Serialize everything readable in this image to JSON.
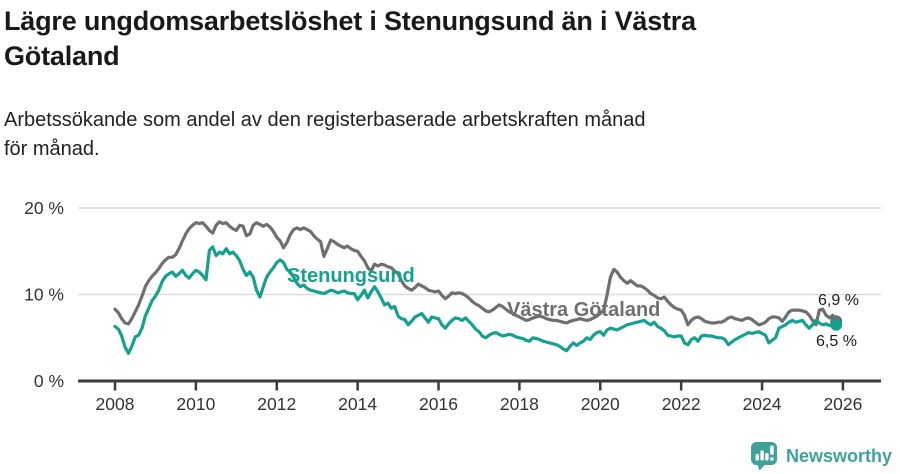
{
  "title": "Lägre ungdomsarbetslöshet i Stenungsund än i Västra Götaland",
  "subtitle": "Arbetssökande som andel av den registerbaserade arbetskraften månad för månad.",
  "footer": {
    "brand": "Newsworthy"
  },
  "chart_data": {
    "type": "line",
    "unit": "%",
    "frequency": "monthly",
    "grid": "horizontal",
    "x_axis": {
      "start_year": 2008,
      "tick_years": [
        2008,
        2010,
        2012,
        2014,
        2016,
        2018,
        2020,
        2022,
        2024,
        2026
      ]
    },
    "y_axis": {
      "ticks": [
        {
          "label": "0 %",
          "v": 0
        },
        {
          "label": "10 %",
          "v": 10
        },
        {
          "label": "20 %",
          "v": 20
        }
      ],
      "ylim": [
        0,
        21.7
      ]
    },
    "series": [
      {
        "name": "Västra Götaland",
        "key": "vastra-gotaland",
        "color": "#6F6F6F",
        "end_label": "6,9 %",
        "end_value": 6.9,
        "values": [
          8.3,
          7.9,
          7.2,
          6.7,
          6.6,
          7.2,
          8.0,
          8.8,
          9.8,
          10.9,
          11.6,
          12.1,
          12.5,
          13.0,
          13.6,
          14.0,
          14.3,
          14.3,
          14.6,
          15.3,
          16.2,
          17.0,
          17.6,
          18.0,
          18.3,
          18.2,
          18.3,
          17.9,
          17.4,
          17.1,
          18.0,
          18.4,
          18.2,
          18.3,
          17.9,
          17.6,
          17.4,
          18.0,
          17.9,
          16.8,
          17.0,
          18.0,
          18.3,
          18.1,
          17.9,
          18.1,
          17.8,
          17.3,
          16.6,
          16.2,
          15.4,
          16.0,
          16.9,
          17.5,
          17.7,
          17.5,
          17.7,
          17.5,
          17.3,
          16.8,
          16.4,
          16.1,
          14.4,
          15.3,
          16.3,
          16.1,
          15.8,
          15.6,
          15.4,
          15.6,
          15.3,
          15.1,
          15.0,
          14.4,
          13.9,
          13.1,
          12.7,
          13.5,
          13.3,
          13.5,
          13.4,
          13.2,
          13.1,
          12.7,
          12.4,
          11.6,
          11.0,
          10.7,
          10.5,
          10.8,
          11.2,
          11.0,
          10.8,
          10.5,
          10.4,
          10.3,
          10.4,
          9.9,
          9.5,
          9.8,
          10.2,
          10.1,
          10.2,
          10.1,
          9.9,
          9.6,
          9.2,
          8.9,
          8.7,
          8.4,
          8.1,
          8.0,
          8.2,
          8.5,
          8.8,
          8.6,
          8.3,
          8.0,
          7.8,
          7.6,
          7.4,
          7.2,
          7.0,
          7.1,
          7.3,
          7.4,
          7.5,
          7.4,
          7.2,
          7.1,
          7.0,
          7.0,
          6.9,
          6.8,
          6.7,
          6.9,
          7.0,
          7.1,
          7.2,
          7.1,
          7.0,
          7.1,
          7.3,
          7.5,
          7.8,
          8.2,
          9.9,
          12.0,
          12.9,
          12.6,
          12.0,
          11.6,
          11.3,
          11.6,
          11.3,
          11.0,
          11.0,
          10.8,
          10.5,
          10.1,
          9.9,
          9.6,
          9.5,
          9.7,
          9.2,
          8.8,
          8.5,
          8.3,
          8.2,
          7.6,
          6.5,
          7.0,
          7.3,
          7.4,
          7.2,
          6.9,
          6.8,
          6.7,
          6.7,
          6.8,
          6.8,
          7.0,
          7.3,
          7.4,
          7.2,
          7.1,
          7.0,
          7.2,
          7.3,
          7.1,
          6.8,
          6.5,
          6.6,
          6.8,
          7.2,
          7.4,
          7.4,
          7.3,
          6.9,
          7.4,
          8.0,
          8.2,
          8.2,
          8.2,
          8.1,
          8.0,
          7.6,
          7.0,
          6.5,
          8.2,
          8.3,
          7.6,
          7.3,
          7.6,
          6.9
        ]
      },
      {
        "name": "Stenungsund",
        "key": "stenungsund",
        "color": "#16A08E",
        "end_label": "6,5 %",
        "end_value": 6.5,
        "values": [
          6.3,
          6.0,
          5.2,
          3.9,
          3.2,
          4.0,
          5.1,
          5.3,
          6.1,
          7.5,
          8.4,
          9.3,
          9.8,
          10.5,
          11.5,
          12.1,
          12.4,
          12.6,
          12.1,
          12.4,
          12.8,
          12.2,
          11.9,
          12.4,
          12.8,
          12.6,
          12.2,
          11.7,
          15.1,
          15.5,
          14.5,
          14.9,
          14.7,
          15.3,
          14.7,
          14.9,
          14.5,
          13.9,
          12.9,
          12.2,
          12.6,
          12.0,
          10.5,
          9.7,
          10.9,
          12.0,
          12.6,
          13.1,
          13.7,
          14.0,
          13.7,
          12.9,
          12.6,
          12.0,
          11.3,
          10.9,
          11.1,
          10.7,
          10.5,
          10.4,
          10.3,
          10.2,
          10.1,
          10.3,
          10.5,
          10.4,
          10.2,
          10.3,
          10.4,
          10.2,
          10.1,
          10.1,
          9.4,
          9.9,
          10.5,
          9.6,
          10.3,
          10.9,
          10.3,
          9.6,
          8.8,
          9.0,
          8.4,
          8.6,
          7.5,
          7.2,
          7.1,
          6.5,
          6.9,
          7.4,
          7.6,
          7.8,
          7.3,
          6.8,
          7.4,
          7.3,
          7.2,
          6.5,
          6.1,
          6.6,
          7.0,
          7.3,
          7.2,
          7.0,
          7.3,
          6.9,
          6.5,
          6.0,
          5.7,
          5.2,
          5.0,
          5.3,
          5.5,
          5.6,
          5.4,
          5.2,
          5.3,
          5.4,
          5.3,
          5.1,
          5.0,
          4.9,
          4.7,
          4.6,
          5.0,
          4.9,
          4.8,
          4.6,
          4.5,
          4.4,
          4.3,
          4.2,
          4.0,
          3.7,
          3.5,
          4.0,
          4.4,
          4.1,
          4.4,
          4.6,
          5.0,
          4.8,
          5.3,
          5.6,
          5.7,
          5.3,
          5.9,
          6.1,
          6.0,
          5.9,
          6.1,
          6.3,
          6.5,
          6.6,
          6.7,
          6.8,
          6.9,
          7.0,
          6.7,
          6.5,
          6.8,
          6.3,
          6.1,
          5.8,
          5.3,
          5.2,
          5.1,
          5.2,
          5.2,
          4.4,
          4.2,
          4.8,
          5.0,
          4.6,
          5.2,
          5.3,
          5.2,
          5.2,
          5.1,
          5.0,
          5.0,
          4.8,
          4.2,
          4.5,
          4.8,
          5.0,
          5.2,
          5.4,
          5.6,
          5.5,
          5.6,
          5.7,
          5.5,
          5.3,
          4.4,
          4.7,
          5.0,
          6.1,
          6.3,
          6.5,
          6.8,
          7.0,
          6.8,
          6.9,
          7.0,
          6.5,
          6.1,
          6.5,
          7.0,
          6.7,
          6.5,
          6.6,
          6.4,
          6.6,
          6.5
        ]
      }
    ]
  }
}
